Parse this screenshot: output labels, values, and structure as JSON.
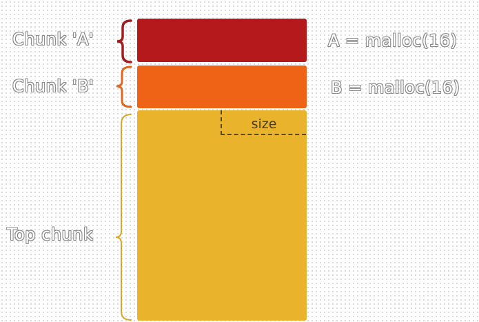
{
  "colors": {
    "chunk_a": "#b5191b",
    "chunk_b": "#ee6316",
    "top_chunk": "#e9b42c",
    "brace_a": "#a01d1d",
    "brace_b": "#e0661e",
    "brace_top": "#d9a626"
  },
  "labels": {
    "chunk_a": "Chunk 'A'",
    "chunk_b": "Chunk 'B'",
    "top_chunk": "Top chunk",
    "size_field": "size"
  },
  "code": {
    "alloc_a": "A = malloc(16)",
    "alloc_b": "B = malloc(16)"
  },
  "icons": [
    "curly-brace-icon"
  ]
}
